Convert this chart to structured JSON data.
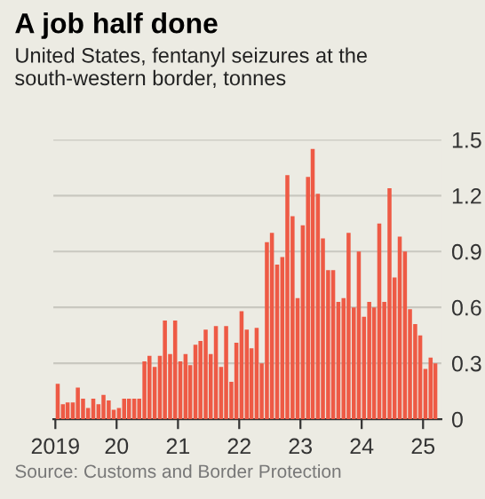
{
  "chart_data": {
    "type": "bar",
    "title": "A job half done",
    "subtitle": "United States, fentanyl seizures at the south-western border, tonnes",
    "x": [
      "2019-01-15",
      "2019-02-15",
      "2019-03-15",
      "2019-04-15",
      "2019-05-15",
      "2019-06-15",
      "2019-07-15",
      "2019-08-15",
      "2019-09-15",
      "2019-10-15",
      "2019-11-15",
      "2019-12-15",
      "2020-01-15",
      "2020-02-15",
      "2020-03-15",
      "2020-04-15",
      "2020-05-15",
      "2020-06-15",
      "2020-07-15",
      "2020-08-15",
      "2020-09-15",
      "2020-10-15",
      "2020-11-15",
      "2020-12-15",
      "2021-01-15",
      "2021-02-15",
      "2021-03-15",
      "2021-04-15",
      "2021-05-15",
      "2021-06-15",
      "2021-07-15",
      "2021-08-15",
      "2021-09-15",
      "2021-10-15",
      "2021-11-15",
      "2021-12-15",
      "2022-01-15",
      "2022-02-15",
      "2022-03-15",
      "2022-04-15",
      "2022-05-15",
      "2022-06-15",
      "2022-07-15",
      "2022-08-15",
      "2022-09-15",
      "2022-10-15",
      "2022-11-15",
      "2022-12-15",
      "2023-01-15",
      "2023-02-15",
      "2023-03-15",
      "2023-04-15",
      "2023-05-15",
      "2023-06-15",
      "2023-07-15",
      "2023-08-15",
      "2023-09-15",
      "2023-10-15",
      "2023-11-15",
      "2023-12-15",
      "2024-01-15",
      "2024-02-15",
      "2024-03-15",
      "2024-04-15",
      "2024-05-15",
      "2024-06-15",
      "2024-07-15",
      "2024-08-15",
      "2024-09-15",
      "2024-10-15",
      "2024-11-15",
      "2024-12-15",
      "2025-01-15",
      "2025-02-15",
      "2025-03-15"
    ],
    "values": [
      0.19,
      0.08,
      0.09,
      0.09,
      0.17,
      0.11,
      0.06,
      0.11,
      0.08,
      0.13,
      0.1,
      0.05,
      0.06,
      0.11,
      0.11,
      0.11,
      0.11,
      0.31,
      0.34,
      0.28,
      0.34,
      0.53,
      0.35,
      0.53,
      0.31,
      0.35,
      0.29,
      0.4,
      0.42,
      0.48,
      0.35,
      0.5,
      0.28,
      0.5,
      0.2,
      0.41,
      0.58,
      0.48,
      0.38,
      0.49,
      0.3,
      0.95,
      1.0,
      0.83,
      0.87,
      1.31,
      1.09,
      0.65,
      1.04,
      1.3,
      1.45,
      1.21,
      0.97,
      0.8,
      0.8,
      0.63,
      0.65,
      1.0,
      0.6,
      0.9,
      0.55,
      0.63,
      0.6,
      1.05,
      0.63,
      1.24,
      0.76,
      0.98,
      0.9,
      0.59,
      0.51,
      0.45,
      0.27,
      0.33,
      0.3
    ],
    "color": "#ee5a45",
    "xlim": [
      "2018-12-20",
      "2025-04-20"
    ],
    "xticks": [
      {
        "value": "2019-01-01",
        "label": "2019"
      },
      {
        "value": "2020-01-01",
        "label": "20"
      },
      {
        "value": "2021-01-01",
        "label": "21"
      },
      {
        "value": "2022-01-01",
        "label": "22"
      },
      {
        "value": "2023-01-01",
        "label": "23"
      },
      {
        "value": "2024-01-01",
        "label": "24"
      },
      {
        "value": "2025-01-01",
        "label": "25"
      }
    ],
    "ylim": [
      0,
      1.5
    ],
    "yticks": [
      0,
      0.3,
      0.6,
      0.9,
      1.2,
      1.5
    ],
    "grid": "y",
    "annotations": [
      "Source: Customs and Border Protection"
    ]
  }
}
